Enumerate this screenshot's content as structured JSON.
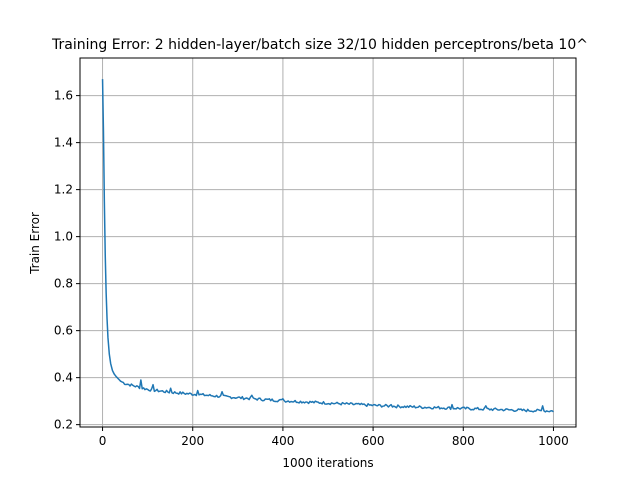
{
  "chart_data": {
    "type": "line",
    "title": "Training Error: 2 hidden-layer/batch size 32/10 hidden perceptrons/beta 10^",
    "xlabel": "1000 iterations",
    "ylabel": "Train Error",
    "xlim": [
      -50,
      1050
    ],
    "ylim": [
      0.19,
      1.76
    ],
    "xticks": [
      0,
      200,
      400,
      600,
      800,
      1000
    ],
    "xtick_labels": [
      "0",
      "200",
      "400",
      "600",
      "800",
      "1000"
    ],
    "yticks": [
      0.2,
      0.4,
      0.6,
      0.8,
      1.0,
      1.2,
      1.4,
      1.6
    ],
    "ytick_labels": [
      "0.2",
      "0.4",
      "0.6",
      "0.8",
      "1.0",
      "1.2",
      "1.4",
      "1.6"
    ],
    "grid": true,
    "legend": "none",
    "series": [
      {
        "color": "#1f77b4",
        "x": [
          0,
          2,
          4,
          6,
          8,
          10,
          12,
          15,
          18,
          22,
          26,
          30,
          35,
          40,
          50,
          60,
          70,
          80,
          90,
          100,
          120,
          150,
          200,
          250,
          300,
          350,
          400,
          450,
          500,
          550,
          600,
          650,
          700,
          750,
          800,
          850,
          900,
          950,
          1000
        ],
        "y": [
          1.67,
          1.45,
          1.15,
          0.92,
          0.76,
          0.65,
          0.57,
          0.5,
          0.46,
          0.43,
          0.415,
          0.405,
          0.395,
          0.385,
          0.375,
          0.37,
          0.365,
          0.36,
          0.355,
          0.35,
          0.345,
          0.338,
          0.33,
          0.322,
          0.315,
          0.308,
          0.302,
          0.297,
          0.292,
          0.287,
          0.282,
          0.278,
          0.275,
          0.272,
          0.269,
          0.266,
          0.263,
          0.26,
          0.258
        ]
      }
    ],
    "spikes": [
      {
        "x": 85,
        "y": 0.39
      },
      {
        "x": 110,
        "y": 0.37
      },
      {
        "x": 150,
        "y": 0.355
      },
      {
        "x": 210,
        "y": 0.345
      },
      {
        "x": 265,
        "y": 0.34
      },
      {
        "x": 330,
        "y": 0.325
      },
      {
        "x": 400,
        "y": 0.31
      },
      {
        "x": 560,
        "y": 0.29
      },
      {
        "x": 640,
        "y": 0.285
      },
      {
        "x": 775,
        "y": 0.285
      },
      {
        "x": 850,
        "y": 0.28
      },
      {
        "x": 975,
        "y": 0.28
      }
    ]
  }
}
